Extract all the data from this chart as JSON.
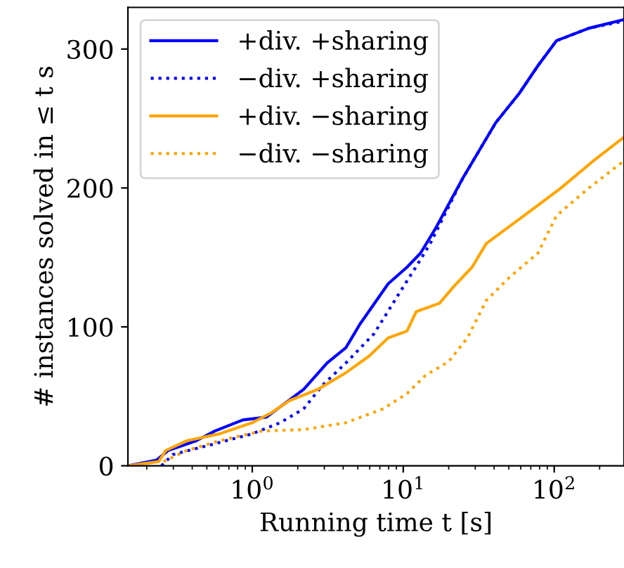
{
  "chart_data": {
    "type": "line",
    "xlabel": "Running time t [s]",
    "ylabel": "# instances solved in ≤ t s",
    "log": "x",
    "xlim": [
      0.15,
      290
    ],
    "xticks": [
      {
        "value": 1,
        "label": "10$^{0}$"
      },
      {
        "value": 10,
        "label": "10$^{1}$"
      },
      {
        "value": 100,
        "label": "10$^{2}$"
      }
    ],
    "ylim": [
      0,
      330
    ],
    "yticks": [
      0,
      100,
      200,
      300
    ],
    "grid": false,
    "legend": "top left",
    "marker": "none",
    "series": [
      {
        "name": "+div. +sharing",
        "color": "#0000ff",
        "line_style": "solid",
        "x": [
          0.15,
          0.232,
          0.277,
          0.425,
          0.565,
          0.866,
          1.24,
          2.19,
          3.13,
          4.17,
          5.17,
          7.94,
          10.6,
          13.0,
          16.2,
          24.8,
          41,
          58.6,
          78,
          103.5,
          170,
          286
        ],
        "values": [
          0,
          4,
          11,
          18,
          25,
          33,
          35,
          55,
          74,
          85,
          102,
          131,
          143,
          153,
          170,
          207,
          247,
          268,
          288,
          306,
          315,
          321
        ]
      },
      {
        "name": "−div. +sharing",
        "color": "#0000ff",
        "line_style": "dotted",
        "x": [
          0.25,
          0.297,
          0.526,
          1.0,
          1.53,
          2.19,
          2.92,
          4.17,
          6.4,
          9.14,
          12.6,
          15.1,
          24.8,
          41,
          58.6,
          78,
          103.5,
          170,
          286
        ],
        "values": [
          0,
          8,
          15,
          23,
          31,
          41,
          58,
          74,
          95,
          122,
          146,
          160,
          207,
          247,
          268,
          288,
          306,
          315,
          320
        ]
      },
      {
        "name": "+div. −sharing",
        "color": "#ffa500",
        "line_style": "solid",
        "x": [
          0.15,
          0.24,
          0.267,
          0.368,
          0.607,
          1.0,
          1.33,
          1.77,
          2.72,
          4.17,
          5.95,
          7.94,
          10.6,
          12.2,
          17.4,
          21.6,
          28.6,
          35.5,
          63,
          111,
          184,
          286
        ],
        "values": [
          0,
          3,
          11,
          18,
          23,
          31,
          38,
          47,
          55,
          67,
          79,
          92,
          97,
          111,
          117,
          129,
          143,
          160,
          180,
          200,
          220,
          236
        ]
      },
      {
        "name": "−div. −sharing",
        "color": "#ffa500",
        "line_style": "dotted",
        "x": [
          0.258,
          0.368,
          0.607,
          1.15,
          2.19,
          4.17,
          7.37,
          10.6,
          14.0,
          20,
          26.6,
          35.5,
          50.9,
          78,
          103.5,
          170,
          286
        ],
        "values": [
          3,
          11,
          18,
          25,
          26,
          31,
          41,
          52,
          65,
          75,
          92,
          119,
          136,
          153,
          180,
          200,
          219
        ]
      }
    ]
  }
}
